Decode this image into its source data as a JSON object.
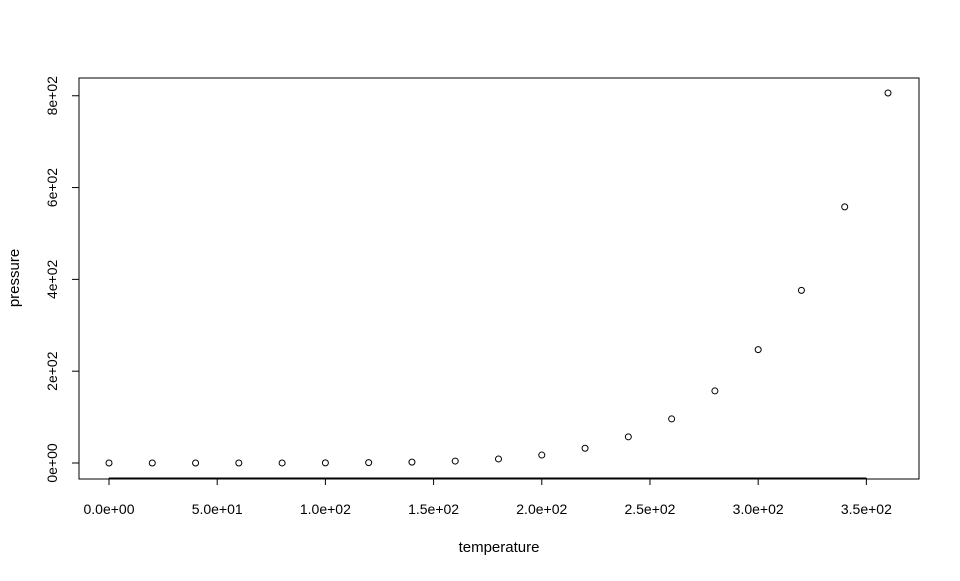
{
  "chart_data": {
    "type": "scatter",
    "xlabel": "temperature",
    "ylabel": "pressure",
    "xlim": [
      0,
      360
    ],
    "ylim": [
      0,
      806
    ],
    "x_ticks": [
      0,
      50,
      100,
      150,
      200,
      250,
      300,
      350
    ],
    "x_tick_labels": [
      "0.0e+00",
      "5.0e+01",
      "1.0e+02",
      "1.5e+02",
      "2.0e+02",
      "2.5e+02",
      "3.0e+02",
      "3.5e+02"
    ],
    "y_ticks": [
      0,
      200,
      400,
      600,
      800
    ],
    "y_tick_labels": [
      "0e+00",
      "2e+02",
      "4e+02",
      "6e+02",
      "8e+02"
    ],
    "grid": false,
    "legend": "none",
    "marker": "open-circle",
    "x": [
      0,
      20,
      40,
      60,
      80,
      100,
      120,
      140,
      160,
      180,
      200,
      220,
      240,
      260,
      280,
      300,
      320,
      340,
      360
    ],
    "y": [
      0.0002,
      0.0012,
      0.006,
      0.03,
      0.09,
      0.27,
      0.75,
      1.85,
      4.2,
      8.8,
      17.3,
      32.1,
      57,
      96,
      157,
      247,
      376,
      558,
      806
    ]
  }
}
